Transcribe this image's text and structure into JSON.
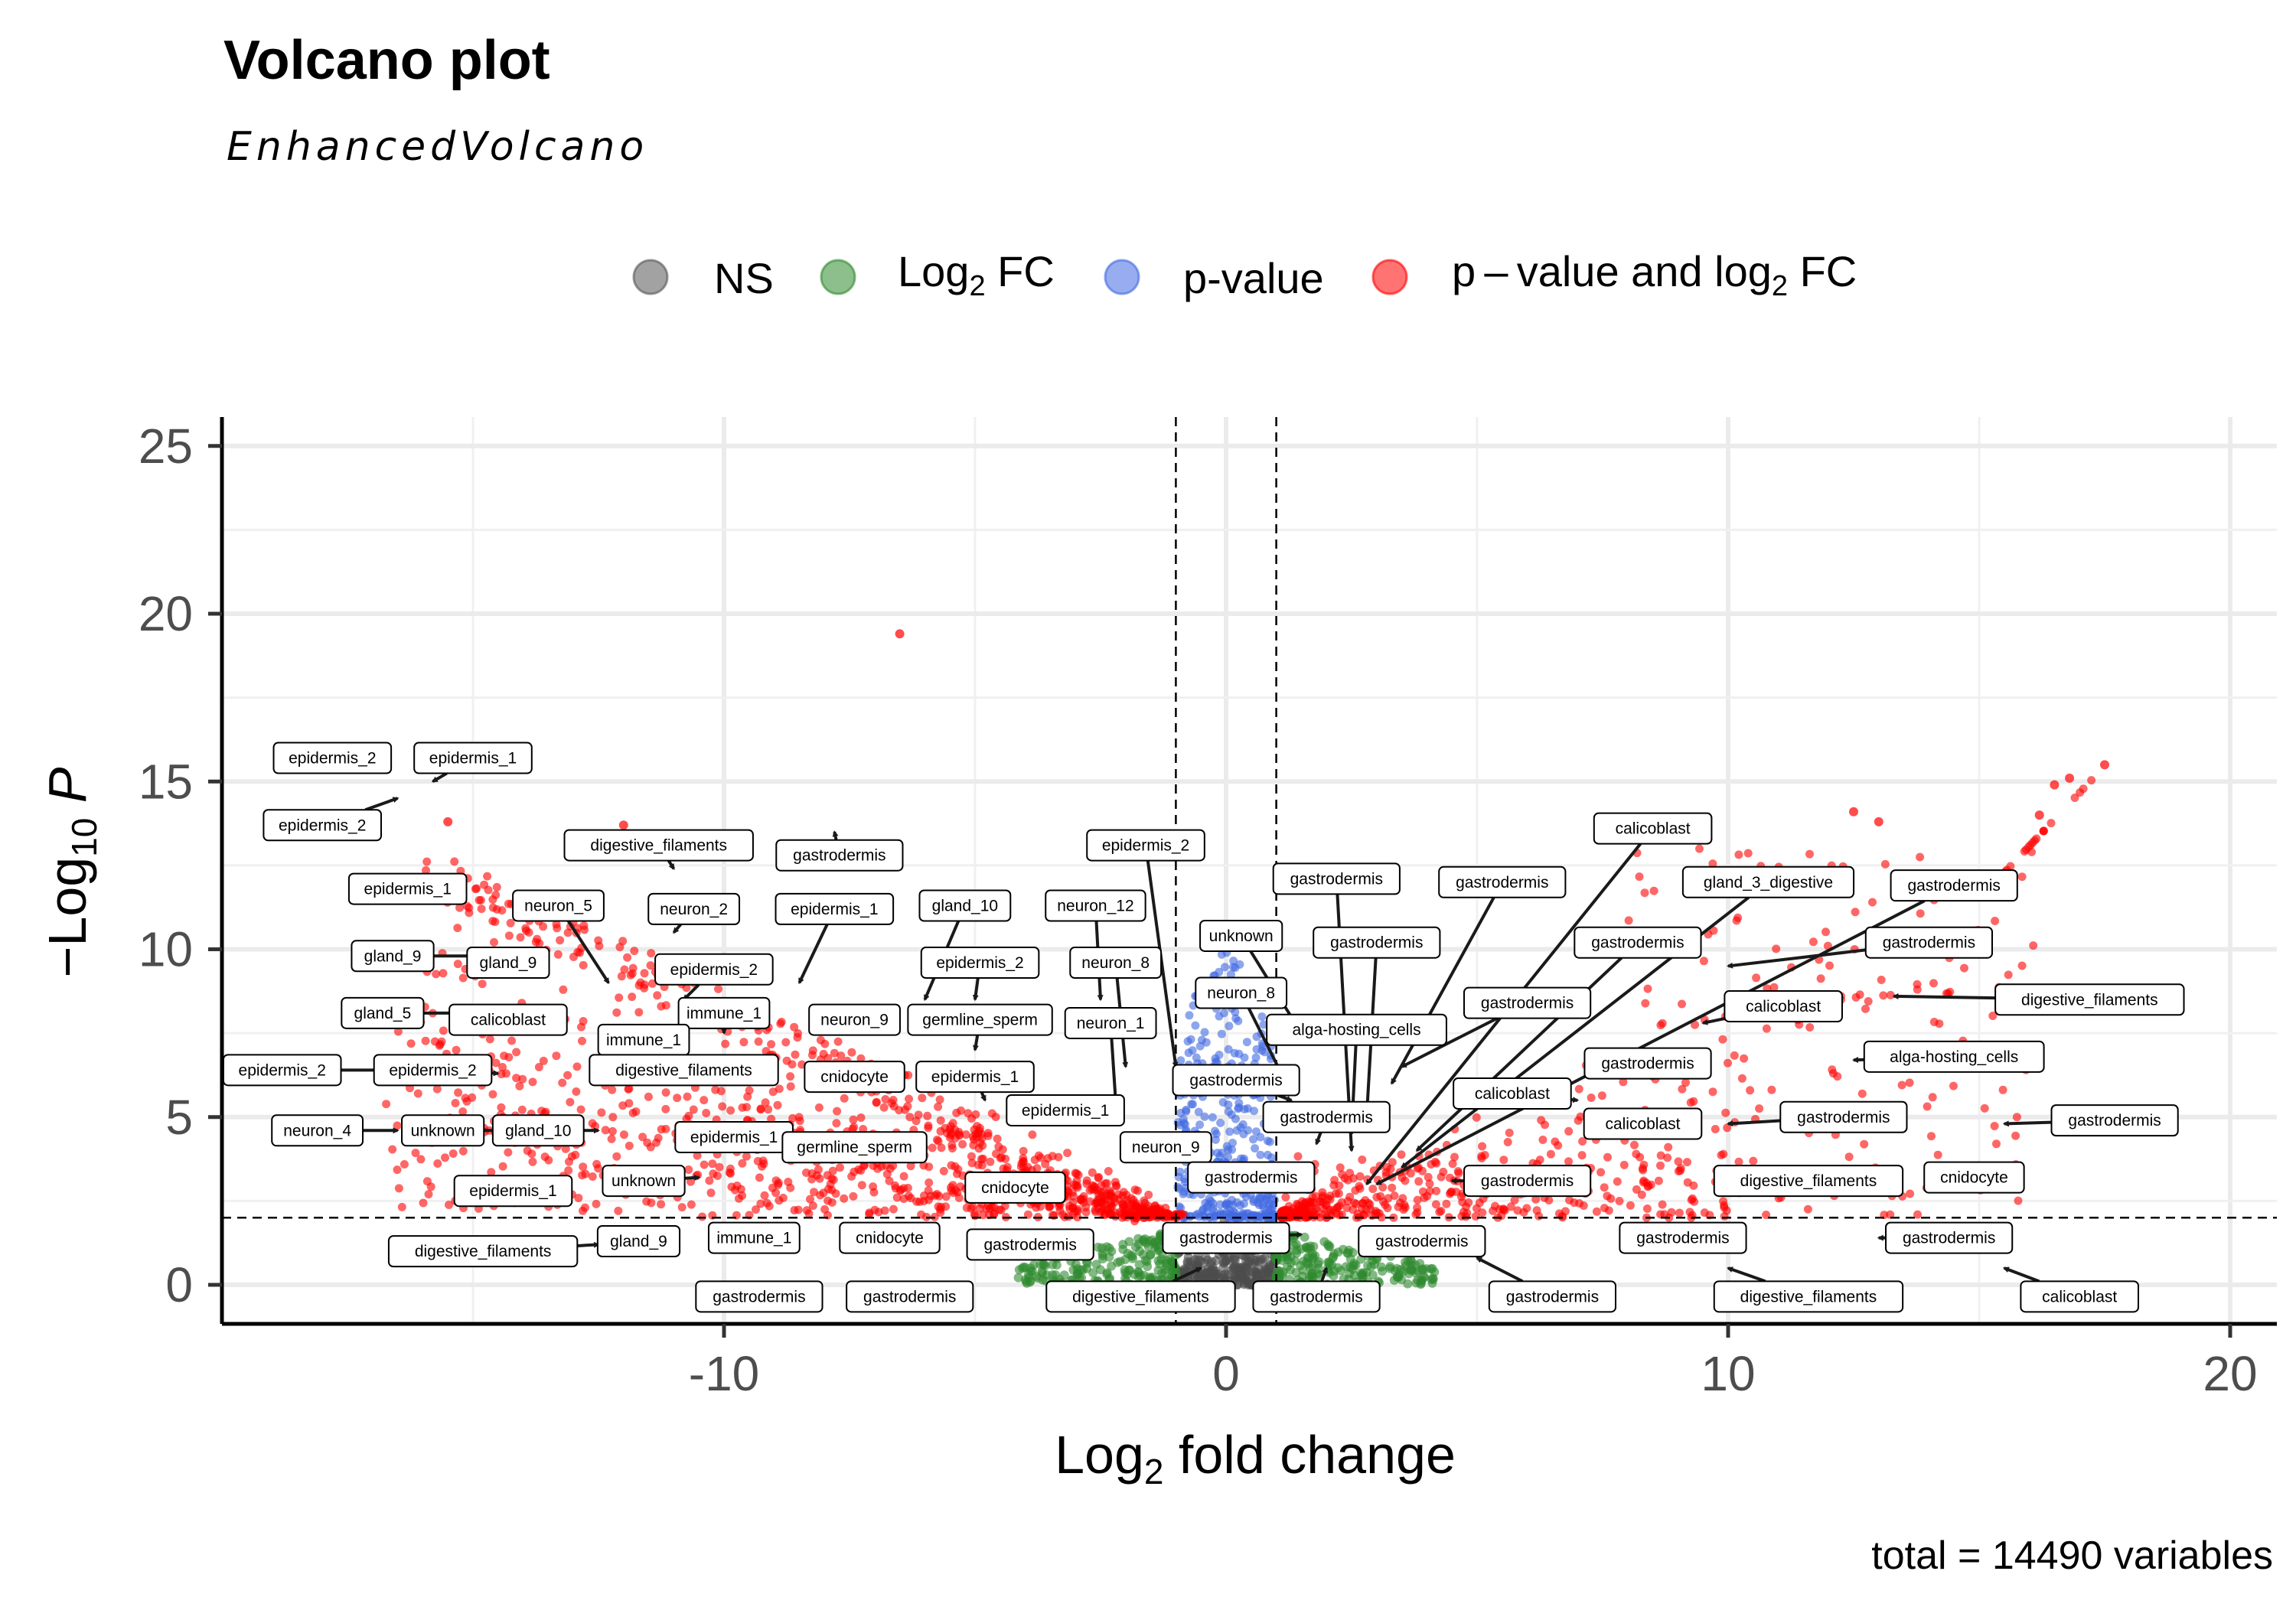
{
  "chart_data": {
    "type": "scatter",
    "title": "Volcano plot",
    "subtitle": "EnhancedVolcano",
    "xlabel": "Log2 fold change",
    "ylabel": "-Log10 P",
    "caption": "total = 14490 variables",
    "xlim": [
      -20,
      21
    ],
    "ylim": [
      -1.2,
      25.5
    ],
    "x_ticks": [
      -10,
      0,
      10,
      20
    ],
    "y_ticks": [
      0,
      5,
      10,
      15,
      20,
      25
    ],
    "x_tick_labels": [
      "-10",
      "0",
      "10",
      "20"
    ],
    "y_tick_labels": [
      "0",
      "5",
      "10",
      "15",
      "20",
      "25"
    ],
    "grid": true,
    "cutoffs": {
      "log2fc": [
        -1,
        1
      ],
      "neglog10p": 2
    },
    "legend_position": "top",
    "legend": [
      {
        "key": "NS",
        "color": "#555555"
      },
      {
        "key": "Log2 FC",
        "color": "#2e8b2e"
      },
      {
        "key": "p-value",
        "color": "#4169e1"
      },
      {
        "key": "p - value and log2 FC",
        "color": "#ff0000"
      }
    ],
    "highlighted_points": [
      {
        "x": -6.5,
        "y": 19.4
      },
      {
        "x": 17.5,
        "y": 15.5
      },
      {
        "x": 16.8,
        "y": 15.1
      },
      {
        "x": 16.5,
        "y": 14.9
      },
      {
        "x": 16.2,
        "y": 14.0
      },
      {
        "x": 12.5,
        "y": 14.1
      },
      {
        "x": 13.0,
        "y": 13.8
      },
      {
        "x": -15.5,
        "y": 13.8
      },
      {
        "x": -12.0,
        "y": 13.7
      }
    ],
    "labels": [
      {
        "text": "epidermis_2",
        "lx": -17.8,
        "ly": 15.7,
        "px": -17.0,
        "py": 15.2
      },
      {
        "text": "epidermis_1",
        "lx": -15.0,
        "ly": 15.7,
        "px": -15.8,
        "py": 15.0
      },
      {
        "text": "epidermis_2",
        "lx": -18.0,
        "ly": 13.7,
        "px": -16.5,
        "py": 14.5
      },
      {
        "text": "epidermis_1",
        "lx": -16.3,
        "ly": 11.8,
        "px": -15.3,
        "py": 12.0
      },
      {
        "text": "digestive_filaments",
        "lx": -11.3,
        "ly": 13.1,
        "px": -11.0,
        "py": 12.4
      },
      {
        "text": "gastrodermis",
        "lx": -7.7,
        "ly": 12.8,
        "px": -7.8,
        "py": 13.5
      },
      {
        "text": "neuron_5",
        "lx": -13.3,
        "ly": 11.3,
        "px": -12.3,
        "py": 9.0
      },
      {
        "text": "neuron_2",
        "lx": -10.6,
        "ly": 11.2,
        "px": -11.0,
        "py": 10.5
      },
      {
        "text": "epidermis_1",
        "lx": -7.8,
        "ly": 11.2,
        "px": -8.5,
        "py": 9.0
      },
      {
        "text": "gland_10",
        "lx": -5.2,
        "ly": 11.3,
        "px": -6.0,
        "py": 8.5
      },
      {
        "text": "neuron_12",
        "lx": -2.6,
        "ly": 11.3,
        "px": -2.5,
        "py": 8.5
      },
      {
        "text": "epidermis_2",
        "lx": -1.6,
        "ly": 13.1,
        "px": -1.0,
        "py": 6.5
      },
      {
        "text": "gland_9",
        "lx": -16.6,
        "ly": 9.8,
        "px": -15.0,
        "py": 9.8
      },
      {
        "text": "gland_9",
        "lx": -14.3,
        "ly": 9.6,
        "px": -13.5,
        "py": 9.6
      },
      {
        "text": "epidermis_2",
        "lx": -10.2,
        "ly": 9.4,
        "px": -10.8,
        "py": 8.5
      },
      {
        "text": "epidermis_2",
        "lx": -4.9,
        "ly": 9.6,
        "px": -5.0,
        "py": 8.5
      },
      {
        "text": "neuron_8",
        "lx": -2.2,
        "ly": 9.6,
        "px": -2.0,
        "py": 6.5
      },
      {
        "text": "unknown",
        "lx": 0.3,
        "ly": 10.4,
        "px": 1.5,
        "py": 7.5
      },
      {
        "text": "gastrodermis",
        "lx": 2.2,
        "ly": 12.1,
        "px": 2.5,
        "py": 4.0
      },
      {
        "text": "gastrodermis",
        "lx": 5.5,
        "ly": 12.0,
        "px": 3.3,
        "py": 6.0
      },
      {
        "text": "calicoblast",
        "lx": 8.5,
        "ly": 13.6,
        "px": 2.8,
        "py": 3.0
      },
      {
        "text": "gland_3_digestive",
        "lx": 10.8,
        "ly": 12.0,
        "px": 3.5,
        "py": 3.5
      },
      {
        "text": "gastrodermis",
        "lx": 14.5,
        "ly": 11.9,
        "px": 3.0,
        "py": 3.0
      },
      {
        "text": "gastrodermis",
        "lx": 3.0,
        "ly": 10.2,
        "px": 2.8,
        "py": 5.0
      },
      {
        "text": "gastrodermis",
        "lx": 8.2,
        "ly": 10.2,
        "px": 3.8,
        "py": 4.0
      },
      {
        "text": "gastrodermis",
        "lx": 14.0,
        "ly": 10.2,
        "px": 10.0,
        "py": 9.5
      },
      {
        "text": "gland_5",
        "lx": -16.8,
        "ly": 8.1,
        "px": -15.0,
        "py": 8.1
      },
      {
        "text": "calicoblast",
        "lx": -14.3,
        "ly": 7.9,
        "px": -13.5,
        "py": 7.9
      },
      {
        "text": "immune_1",
        "lx": -10.0,
        "ly": 8.1,
        "px": -10.0,
        "py": 7.5
      },
      {
        "text": "neuron_9",
        "lx": -7.4,
        "ly": 7.9,
        "px": -8.0,
        "py": 7.5
      },
      {
        "text": "germline_sperm",
        "lx": -4.9,
        "ly": 7.9,
        "px": -5.0,
        "py": 7.0
      },
      {
        "text": "neuron_1",
        "lx": -2.3,
        "ly": 7.8,
        "px": -2.2,
        "py": 5.5
      },
      {
        "text": "neuron_8",
        "lx": 0.3,
        "ly": 8.7,
        "px": 1.2,
        "py": 6.0
      },
      {
        "text": "alga-hosting_cells",
        "lx": 2.6,
        "ly": 7.6,
        "px": 2.5,
        "py": 4.5
      },
      {
        "text": "gastrodermis",
        "lx": 6.0,
        "ly": 8.4,
        "px": 3.5,
        "py": 6.5
      },
      {
        "text": "calicoblast",
        "lx": 11.1,
        "ly": 8.3,
        "px": 9.5,
        "py": 7.8
      },
      {
        "text": "digestive_filaments",
        "lx": 17.2,
        "ly": 8.5,
        "px": 13.3,
        "py": 8.6
      },
      {
        "text": "immune_1",
        "lx": -11.6,
        "ly": 7.3,
        "px": -11.0,
        "py": 7.0
      },
      {
        "text": "epidermis_2",
        "lx": -18.8,
        "ly": 6.4,
        "px": -16.5,
        "py": 6.4
      },
      {
        "text": "epidermis_2",
        "lx": -15.8,
        "ly": 6.4,
        "px": -14.5,
        "py": 6.3
      },
      {
        "text": "digestive_filaments",
        "lx": -10.8,
        "ly": 6.4,
        "px": -9.8,
        "py": 6.0
      },
      {
        "text": "cnidocyte",
        "lx": -7.4,
        "ly": 6.2,
        "px": -7.0,
        "py": 5.8
      },
      {
        "text": "epidermis_1",
        "lx": -5.0,
        "ly": 6.2,
        "px": -4.8,
        "py": 5.5
      },
      {
        "text": "gastrodermis",
        "lx": 0.2,
        "ly": 6.1,
        "px": 1.3,
        "py": 5.5
      },
      {
        "text": "gastrodermis",
        "lx": 2.0,
        "ly": 5.0,
        "px": 1.8,
        "py": 4.2
      },
      {
        "text": "gastrodermis",
        "lx": 8.4,
        "ly": 6.6,
        "px": 7.2,
        "py": 6.5
      },
      {
        "text": "alga-hosting_cells",
        "lx": 14.5,
        "ly": 6.8,
        "px": 12.5,
        "py": 6.7
      },
      {
        "text": "calicoblast",
        "lx": 5.7,
        "ly": 5.7,
        "px": 7.0,
        "py": 5.5
      },
      {
        "text": "calicoblast",
        "lx": 8.3,
        "ly": 4.8,
        "px": 7.5,
        "py": 4.5
      },
      {
        "text": "gastrodermis",
        "lx": 12.3,
        "ly": 5.0,
        "px": 10.0,
        "py": 4.8
      },
      {
        "text": "gastrodermis",
        "lx": 17.7,
        "ly": 4.9,
        "px": 15.5,
        "py": 4.8
      },
      {
        "text": "neuron_4",
        "lx": -18.1,
        "ly": 4.6,
        "px": -16.5,
        "py": 4.6
      },
      {
        "text": "unknown",
        "lx": -15.6,
        "ly": 4.6,
        "px": -14.5,
        "py": 4.6
      },
      {
        "text": "gland_10",
        "lx": -13.7,
        "ly": 4.6,
        "px": -12.5,
        "py": 4.6
      },
      {
        "text": "epidermis_1",
        "lx": -9.8,
        "ly": 4.4,
        "px": -9.0,
        "py": 4.2
      },
      {
        "text": "germline_sperm",
        "lx": -7.4,
        "ly": 4.1,
        "px": -7.0,
        "py": 4.5
      },
      {
        "text": "epidermis_1",
        "lx": -3.2,
        "ly": 5.2,
        "px": -3.5,
        "py": 5.0
      },
      {
        "text": "neuron_9",
        "lx": -1.2,
        "ly": 4.1,
        "px": -1.0,
        "py": 4.0
      },
      {
        "text": "gastrodermis",
        "lx": 0.5,
        "ly": 3.2,
        "px": 1.5,
        "py": 3.0
      },
      {
        "text": "gastrodermis",
        "lx": 6.0,
        "ly": 3.1,
        "px": 4.5,
        "py": 3.1
      },
      {
        "text": "digestive_filaments",
        "lx": 11.6,
        "ly": 3.1,
        "px": 13.0,
        "py": 3.1
      },
      {
        "text": "cnidocyte",
        "lx": 14.9,
        "ly": 3.2,
        "px": 14.5,
        "py": 3.2
      },
      {
        "text": "epidermis_1",
        "lx": -14.2,
        "ly": 2.8,
        "px": -13.0,
        "py": 2.9
      },
      {
        "text": "unknown",
        "lx": -11.6,
        "ly": 3.1,
        "px": -10.5,
        "py": 3.2
      },
      {
        "text": "cnidocyte",
        "lx": -4.2,
        "ly": 2.9,
        "px": -3.5,
        "py": 3.0
      },
      {
        "text": "gland_9",
        "lx": -11.7,
        "ly": 1.3,
        "px": -12.5,
        "py": 1.1
      },
      {
        "text": "immune_1",
        "lx": -9.4,
        "ly": 1.4,
        "px": -8.5,
        "py": 1.5
      },
      {
        "text": "cnidocyte",
        "lx": -6.7,
        "ly": 1.4,
        "px": -5.8,
        "py": 1.5
      },
      {
        "text": "gastrodermis",
        "lx": -3.9,
        "ly": 1.2,
        "px": -3.5,
        "py": 1.5
      },
      {
        "text": "gastrodermis",
        "lx": 0.0,
        "ly": 1.4,
        "px": 1.5,
        "py": 1.5
      },
      {
        "text": "gastrodermis",
        "lx": 3.9,
        "ly": 1.3,
        "px": 3.0,
        "py": 1.6
      },
      {
        "text": "gastrodermis",
        "lx": 9.1,
        "ly": 1.4,
        "px": 10.0,
        "py": 1.4
      },
      {
        "text": "gastrodermis",
        "lx": 14.4,
        "ly": 1.4,
        "px": 13.0,
        "py": 1.4
      },
      {
        "text": "digestive_filaments",
        "lx": -14.8,
        "ly": 1.0,
        "px": -12.5,
        "py": 1.2
      },
      {
        "text": "gastrodermis",
        "lx": -9.3,
        "ly": -0.35,
        "px": -8.0,
        "py": 0.1
      },
      {
        "text": "gastrodermis",
        "lx": -6.3,
        "ly": -0.35,
        "px": -5.0,
        "py": 0.0
      },
      {
        "text": "digestive_filaments",
        "lx": -1.7,
        "ly": -0.35,
        "px": -0.5,
        "py": 0.5
      },
      {
        "text": "gastrodermis",
        "lx": 1.8,
        "ly": -0.35,
        "px": 2.0,
        "py": 0.5
      },
      {
        "text": "gastrodermis",
        "lx": 6.5,
        "ly": -0.35,
        "px": 5.0,
        "py": 0.8
      },
      {
        "text": "digestive_filaments",
        "lx": 11.6,
        "ly": -0.35,
        "px": 10.0,
        "py": 0.5
      },
      {
        "text": "calicoblast",
        "lx": 17.0,
        "ly": -0.35,
        "px": 15.5,
        "py": 0.5
      }
    ]
  }
}
